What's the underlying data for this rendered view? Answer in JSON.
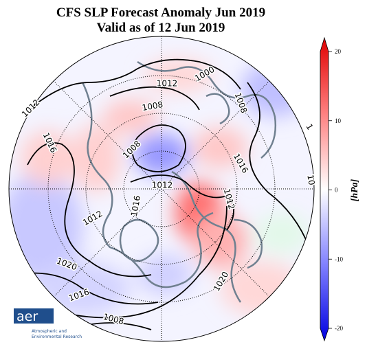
{
  "title": [
    "CFS SLP Forecast Anomaly Jun 2019",
    "Valid as of 12 Jun 2019"
  ],
  "colorbar": {
    "label": "[hPa]",
    "lim": [
      -20,
      20
    ],
    "ticks": [
      20,
      10,
      0,
      -10,
      -20
    ]
  },
  "contour_labels": [
    1012,
    1016,
    1008,
    1012,
    1000,
    1008,
    1008,
    1016,
    1012,
    1012,
    1016,
    1012,
    1020,
    1016,
    1008,
    1020,
    1,
    10
  ],
  "logo": {
    "name": "aer",
    "text": [
      "Atmospheric and",
      "Environmental Research"
    ]
  }
}
